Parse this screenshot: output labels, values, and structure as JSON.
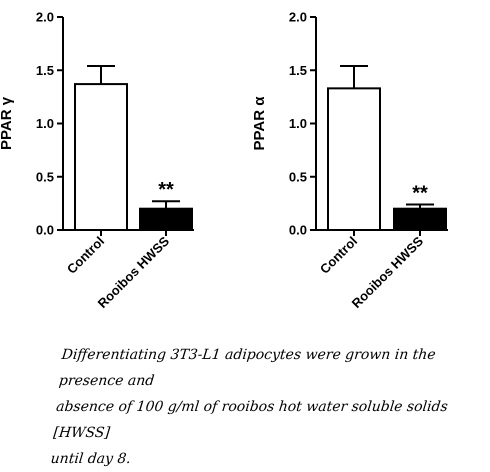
{
  "chart_data": [
    {
      "type": "bar",
      "ylabel": "PPAR γ",
      "categories": [
        "Control",
        "Rooibos HWSS"
      ],
      "values": [
        1.37,
        0.2
      ],
      "errors": [
        0.17,
        0.07
      ],
      "bar_fills": [
        "#ffffff",
        "#000000"
      ],
      "annotations": [
        "",
        "**"
      ],
      "ylim": [
        0,
        2.0
      ],
      "yticks": [
        "0.0",
        "0.5",
        "1.0",
        "1.5",
        "2.0"
      ],
      "grid": false
    },
    {
      "type": "bar",
      "ylabel": "PPAR α",
      "categories": [
        "Control",
        "Rooibos HWSS"
      ],
      "values": [
        1.33,
        0.2
      ],
      "errors": [
        0.21,
        0.04
      ],
      "bar_fills": [
        "#ffffff",
        "#000000"
      ],
      "annotations": [
        "",
        "**"
      ],
      "ylim": [
        0,
        2.0
      ],
      "yticks": [
        "0.0",
        "0.5",
        "1.0",
        "1.5",
        "2.0"
      ],
      "grid": false
    }
  ],
  "caption": {
    "lines": [
      "Differentiating 3T3-L1 adipocytes were grown in the presence and",
      "absence of 100 g/ml of rooibos hot water soluble solids [HWSS]",
      "until day 8."
    ]
  }
}
